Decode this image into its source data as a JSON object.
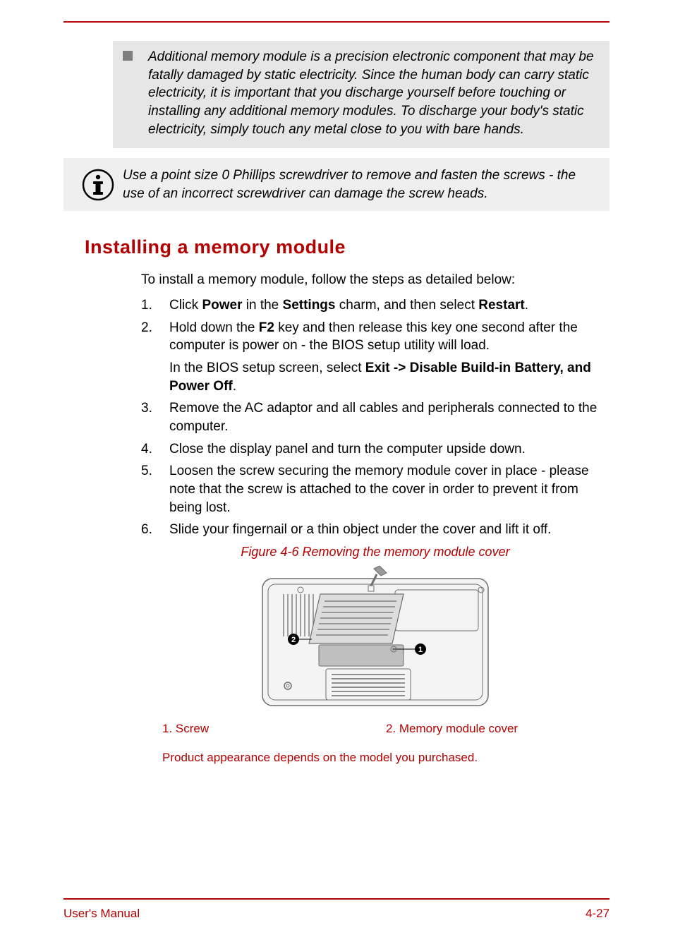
{
  "colors": {
    "accent": "#b30000",
    "callout_dark_bg": "#e6e6e6",
    "callout_light_bg": "#efefef",
    "bullet": "#7e7e7e",
    "text": "#000000",
    "page_bg": "#ffffff",
    "figure_stroke": "#6e6e6e",
    "figure_fill": "#dcdcdc",
    "figure_dark_fill": "#bfbfbf"
  },
  "typography": {
    "body_fontsize": 19,
    "heading_fontsize": 27,
    "caption_fontsize": 18,
    "legend_fontsize": 17,
    "footer_fontsize": 17,
    "family": "Arial"
  },
  "top_callout": {
    "bullet_items": [
      "Additional memory module is a precision electronic component that may be fatally damaged by static electricity. Since the human body can carry static electricity, it is important that you discharge yourself before touching or installing any additional memory modules. To discharge your body's static electricity, simply touch any metal close to you with bare hands."
    ]
  },
  "note_callout": {
    "icon": "info-icon",
    "text": "Use a point size 0 Phillips screwdriver to remove and fasten the screws - the use of an incorrect screwdriver can damage the screw heads."
  },
  "section_title": "Installing a memory module",
  "intro_text": "To install a memory module, follow the steps as detailed below:",
  "steps": [
    {
      "segments": [
        {
          "t": "Click "
        },
        {
          "t": "Power",
          "b": true
        },
        {
          "t": " in the "
        },
        {
          "t": "Settings",
          "b": true
        },
        {
          "t": " charm, and then select "
        },
        {
          "t": "Restart",
          "b": true
        },
        {
          "t": "."
        }
      ]
    },
    {
      "segments": [
        {
          "t": "Hold down the "
        },
        {
          "t": "F2",
          "b": true
        },
        {
          "t": " key and then release this key one second after the computer is power on - the BIOS setup utility will load."
        }
      ],
      "sub": {
        "segments": [
          {
            "t": "In the BIOS setup screen, select "
          },
          {
            "t": "Exit -> Disable Build-in Battery, and Power Off",
            "b": true
          },
          {
            "t": "."
          }
        ]
      }
    },
    {
      "segments": [
        {
          "t": "Remove the AC adaptor and all cables and peripherals connected to the computer."
        }
      ]
    },
    {
      "segments": [
        {
          "t": "Close the display panel and turn the computer upside down."
        }
      ]
    },
    {
      "segments": [
        {
          "t": "Loosen the screw securing the memory module cover in place - please note that the screw is attached to the cover in order to prevent it from being lost."
        }
      ]
    },
    {
      "segments": [
        {
          "t": "Slide your fingernail or a thin object under the cover and lift it off."
        }
      ]
    }
  ],
  "figure": {
    "caption": "Figure 4-6 Removing the memory module cover",
    "callouts": [
      "1",
      "2"
    ],
    "legend": [
      "1. Screw",
      "2. Memory module cover"
    ]
  },
  "disclaimer": "Product appearance depends on the model you purchased.",
  "footer": {
    "left": "User's Manual",
    "right": "4-27"
  }
}
